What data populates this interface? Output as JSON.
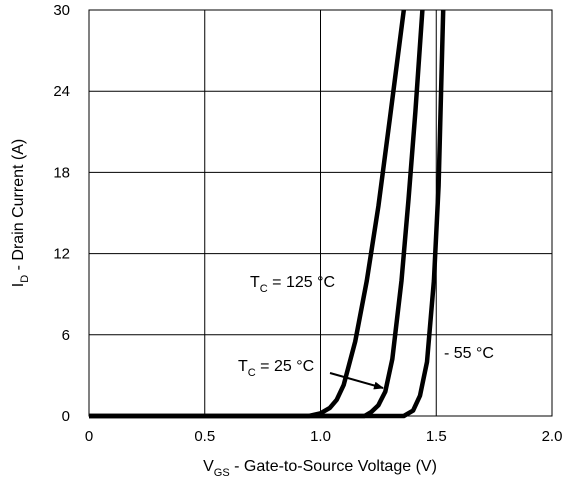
{
  "chart_data": {
    "type": "line",
    "title": "",
    "xlabel": {
      "main": "V",
      "sub": "GS",
      "rest": " - Gate-to-Source Voltage (V)"
    },
    "ylabel": {
      "main": "I",
      "sub": "D",
      "rest": " - Drain Current (A)"
    },
    "xlim": [
      0,
      2.0
    ],
    "ylim": [
      0,
      30
    ],
    "x_ticks": [
      {
        "value": 0,
        "label": "0"
      },
      {
        "value": 0.5,
        "label": "0.5"
      },
      {
        "value": 1.0,
        "label": "1.0"
      },
      {
        "value": 1.5,
        "label": "1.5"
      },
      {
        "value": 2.0,
        "label": "2.0"
      }
    ],
    "y_ticks": [
      {
        "value": 0,
        "label": "0"
      },
      {
        "value": 6,
        "label": "6"
      },
      {
        "value": 12,
        "label": "12"
      },
      {
        "value": 18,
        "label": "18"
      },
      {
        "value": 24,
        "label": "24"
      },
      {
        "value": 30,
        "label": "30"
      }
    ],
    "grid": true,
    "series": [
      {
        "name": "T_C = 125 °C",
        "x": [
          0,
          0.95,
          1.0,
          1.04,
          1.07,
          1.1,
          1.15,
          1.2,
          1.25,
          1.3,
          1.36
        ],
        "y": [
          0,
          0,
          0.2,
          0.6,
          1.2,
          2.3,
          5.5,
          10,
          15.5,
          22,
          30
        ]
      },
      {
        "name": "T_C = 25 °C",
        "x": [
          0,
          1.19,
          1.22,
          1.25,
          1.28,
          1.31,
          1.35,
          1.38,
          1.41,
          1.44
        ],
        "y": [
          0,
          0,
          0.3,
          0.8,
          1.8,
          4.2,
          10,
          16,
          22.5,
          30
        ]
      },
      {
        "name": "- 55 °C",
        "x": [
          0,
          1.36,
          1.4,
          1.43,
          1.46,
          1.49,
          1.51,
          1.53
        ],
        "y": [
          0,
          0,
          0.4,
          1.5,
          4,
          10,
          17,
          30
        ]
      }
    ],
    "annotations": [
      {
        "id": "t125",
        "main": "T",
        "sub": "C",
        "rest": " = 125 °C"
      },
      {
        "id": "t25",
        "main": "T",
        "sub": "C",
        "rest": " = 25 °C",
        "arrow": true
      },
      {
        "id": "tm55",
        "main": "- 55 °C",
        "sub": "",
        "rest": ""
      }
    ],
    "colors": {
      "line": "#000000",
      "grid": "#000000",
      "background": "#ffffff"
    }
  }
}
